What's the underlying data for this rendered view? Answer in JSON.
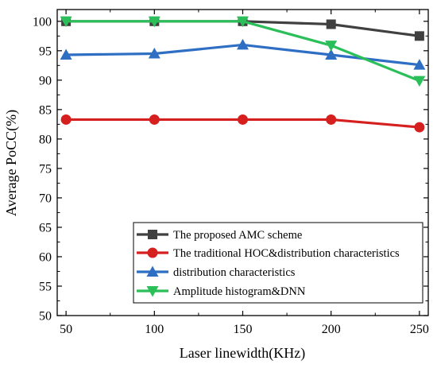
{
  "chart_data": {
    "type": "line",
    "title": "",
    "xlabel": "Laser linewidth(KHz)",
    "ylabel": "Average PoCC(%)",
    "x": [
      50,
      100,
      150,
      200,
      250
    ],
    "xlim": [
      45,
      255
    ],
    "ylim": [
      50,
      102
    ],
    "xticks": [
      "50",
      "100",
      "150",
      "200",
      "250"
    ],
    "yticks": [
      "50",
      "55",
      "60",
      "65",
      "70",
      "75",
      "80",
      "85",
      "90",
      "95",
      "100"
    ],
    "legend_position": "bottom-right",
    "grid": false,
    "series": [
      {
        "name": "The proposed AMC scheme",
        "color": "#404040",
        "marker": "square",
        "values": [
          100,
          100,
          100,
          99.5,
          97.5
        ]
      },
      {
        "name": "The traditional HOC&distribution characteristics",
        "color": "#d62020",
        "marker": "circle",
        "values": [
          83.3,
          83.3,
          83.3,
          83.3,
          82.0
        ]
      },
      {
        "name": "distribution  characteristics",
        "color": "#2e6fc4",
        "marker": "triangle-up",
        "values": [
          94.3,
          94.5,
          96.0,
          94.3,
          92.6
        ]
      },
      {
        "name": "Amplitude histogram&DNN",
        "color": "#2bbf5a",
        "marker": "triangle-down",
        "values": [
          100,
          100,
          100,
          95.9,
          89.9
        ]
      }
    ]
  }
}
